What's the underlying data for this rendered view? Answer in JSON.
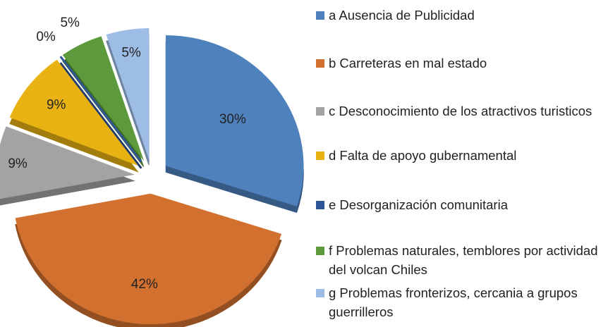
{
  "chart_data": {
    "type": "pie",
    "categories": [
      "a Ausencia de Publicidad",
      "b Carreteras en mal estado",
      "c Desconocimiento de los atractivos turisticos",
      "d Falta de apoyo gubernamental",
      "e Desorganización comunitaria",
      "f Problemas naturales, temblores por actividad del volcan Chiles",
      "g Problemas fronterizos, cercania a grupos guerrilleros"
    ],
    "values": [
      30,
      42,
      9,
      9,
      0,
      5,
      5
    ],
    "value_labels": [
      "30%",
      "42%",
      "9%",
      "9%",
      "0%",
      "5%",
      "5%"
    ],
    "colors": [
      "#4f81bd",
      "#d2712f",
      "#a3a3a3",
      "#e7b212",
      "#2f5597",
      "#5c9a3c",
      "#9dbde6"
    ],
    "legend": "right"
  }
}
